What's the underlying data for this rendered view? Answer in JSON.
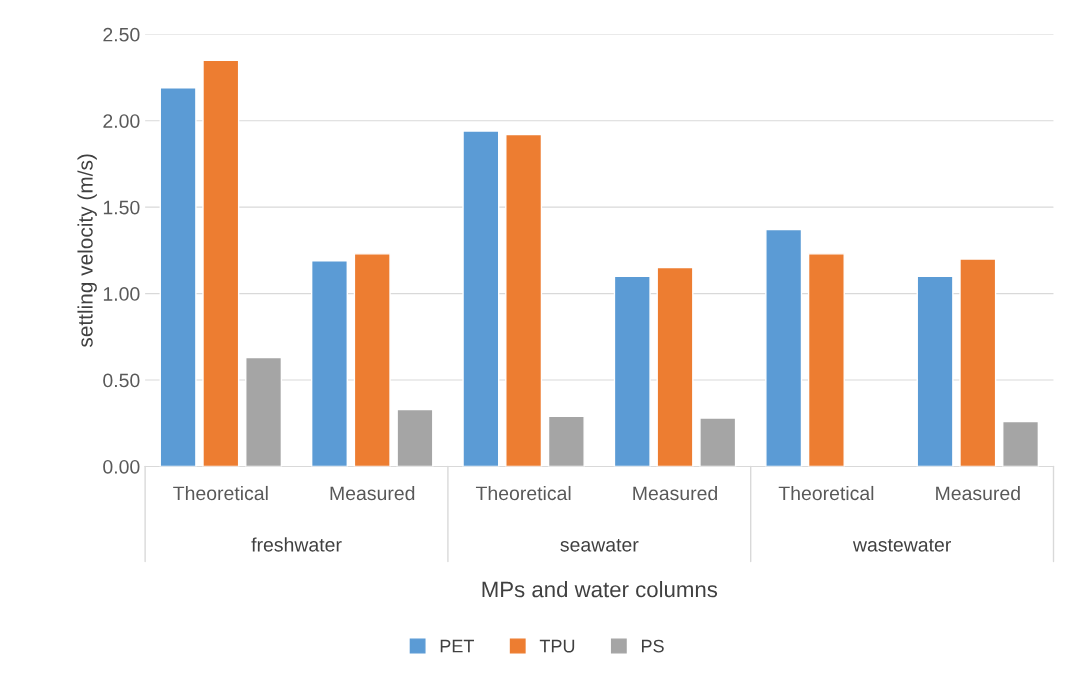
{
  "chart_data": {
    "type": "bar",
    "xlabel": "MPs and water columns",
    "ylabel": "settling velocity (m/s)",
    "categories": [
      "Theoretical",
      "Measured",
      "Theoretical",
      "Measured",
      "Theoretical",
      "Measured"
    ],
    "annotations": [
      "freshwater",
      "seawater",
      "wastewater"
    ],
    "series": [
      {
        "name": "PET",
        "color": "#5b9bd5",
        "values": [
          2.19,
          1.19,
          1.94,
          1.1,
          1.37,
          1.1
        ]
      },
      {
        "name": "TPU",
        "color": "#ed7d31",
        "values": [
          2.35,
          1.23,
          1.92,
          1.15,
          1.23,
          1.2
        ]
      },
      {
        "name": "PS",
        "color": "#a5a5a5",
        "values": [
          0.63,
          0.33,
          0.29,
          0.28,
          null,
          0.26
        ]
      }
    ],
    "ylim": [
      0,
      2.5
    ],
    "yticks": [
      {
        "value": 0,
        "label": "0.00"
      },
      {
        "value": 0.5,
        "label": "0.50"
      },
      {
        "value": 1,
        "label": "1.00"
      },
      {
        "value": 1.5,
        "label": "1.50"
      },
      {
        "value": 2,
        "label": "2.00"
      },
      {
        "value": 2.5,
        "label": "2.50"
      }
    ],
    "grid": "y",
    "legend": "bottom"
  }
}
